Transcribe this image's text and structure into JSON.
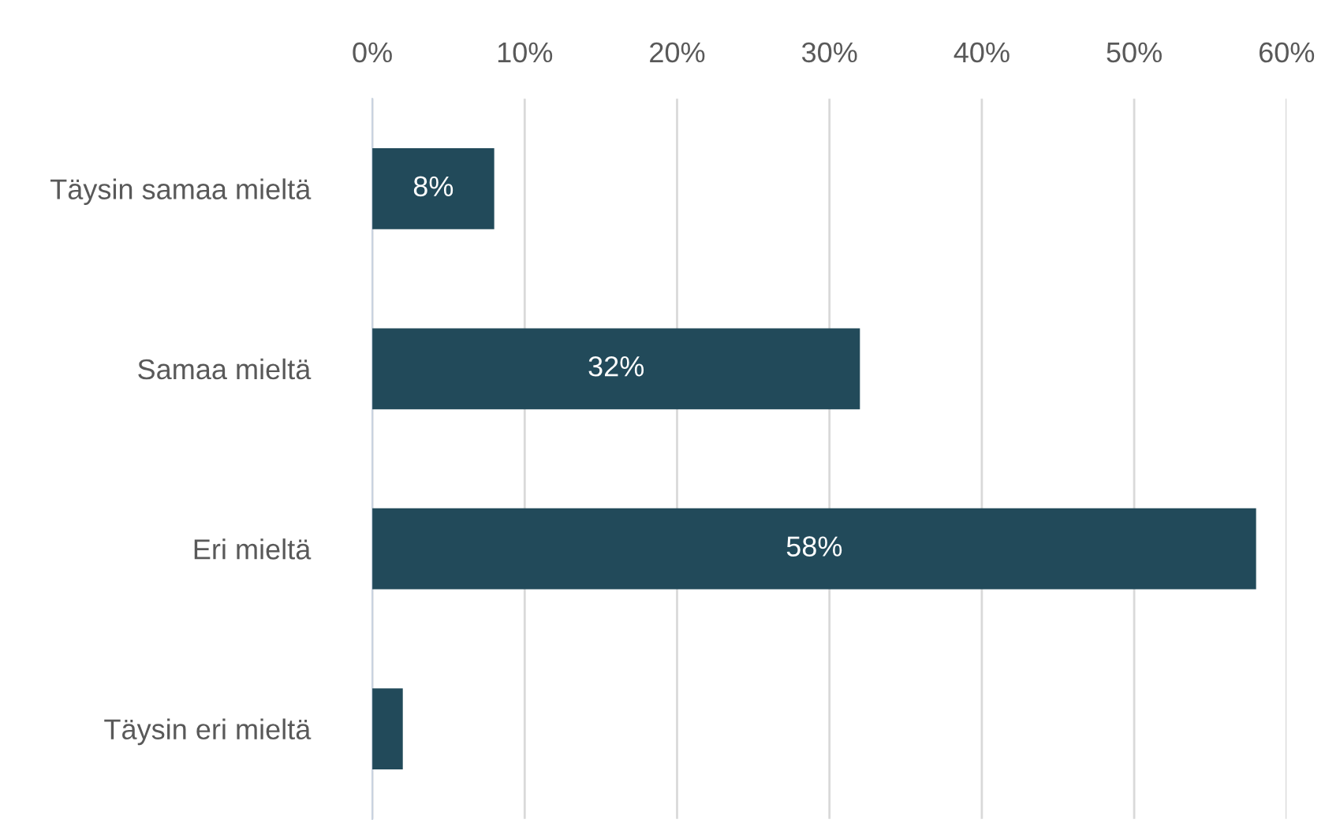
{
  "chart_data": {
    "type": "bar",
    "orientation": "horizontal",
    "categories": [
      "Täysin samaa mieltä",
      "Samaa mieltä",
      "Eri mieltä",
      "Täysin eri mieltä"
    ],
    "values": [
      8,
      32,
      58,
      2
    ],
    "value_labels": [
      "8%",
      "32%",
      "58%",
      null
    ],
    "color": "#224a5a",
    "xlim": [
      0,
      60
    ],
    "xticks": [
      {
        "value": 0,
        "label": "0%"
      },
      {
        "value": 10,
        "label": "10%"
      },
      {
        "value": 20,
        "label": "20%"
      },
      {
        "value": 30,
        "label": "30%"
      },
      {
        "value": 40,
        "label": "40%"
      },
      {
        "value": 50,
        "label": "50%"
      },
      {
        "value": 60,
        "label": "60%"
      }
    ],
    "grid": "x",
    "legend": false
  }
}
